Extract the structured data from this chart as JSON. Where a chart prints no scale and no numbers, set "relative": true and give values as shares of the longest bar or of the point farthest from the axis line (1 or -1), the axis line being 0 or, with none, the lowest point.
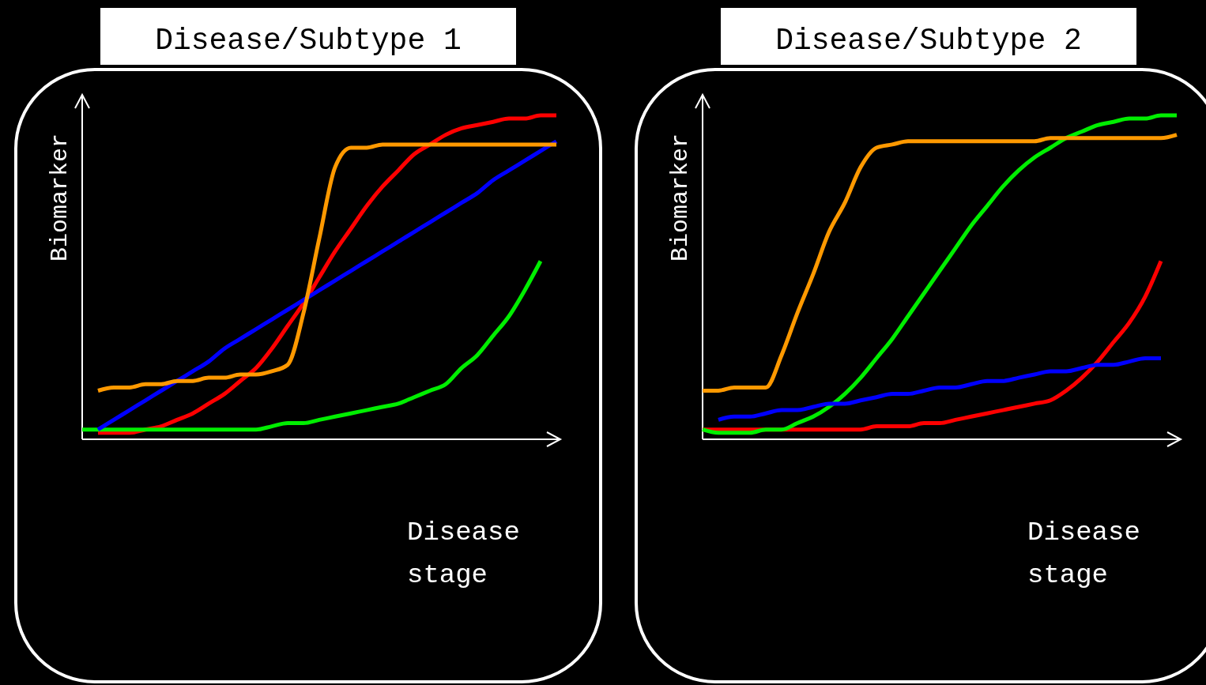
{
  "chart_data": [
    {
      "type": "line",
      "title": "Disease/Subtype 1",
      "xlabel": "Disease stage",
      "ylabel": "Biomarker",
      "relative": true,
      "categories": [
        null,
        null,
        null,
        null,
        null,
        null,
        null,
        null,
        null,
        null,
        null,
        null,
        null,
        null,
        null,
        null,
        null,
        null,
        null,
        null,
        null,
        null,
        null,
        null,
        null,
        null,
        null,
        null,
        null,
        null,
        null
      ],
      "series": [
        {
          "color": "#ff0000",
          "values": [
            null,
            0.02,
            0.02,
            0.02,
            0.03,
            0.04,
            0.06,
            0.08,
            0.11,
            0.14,
            0.18,
            0.22,
            0.28,
            0.35,
            0.42,
            0.5,
            0.58,
            0.65,
            0.72,
            0.78,
            0.83,
            0.88,
            0.91,
            0.94,
            0.96,
            0.97,
            0.98,
            0.99,
            0.99,
            1.0,
            1.0
          ]
        },
        {
          "color": "#00ee00",
          "values": [
            0.03,
            0.03,
            0.03,
            0.03,
            0.03,
            0.03,
            0.03,
            0.03,
            0.03,
            0.03,
            0.03,
            0.03,
            0.04,
            0.05,
            0.05,
            0.06,
            0.07,
            0.08,
            0.09,
            0.1,
            0.11,
            0.13,
            0.15,
            0.17,
            0.22,
            0.26,
            0.32,
            0.38,
            0.46,
            0.55,
            null
          ]
        },
        {
          "color": "#0000ff",
          "values": [
            null,
            0.03,
            0.06,
            0.09,
            0.12,
            0.15,
            0.18,
            0.21,
            0.24,
            0.28,
            0.31,
            0.34,
            0.37,
            0.4,
            0.43,
            0.46,
            0.49,
            0.52,
            0.55,
            0.58,
            0.61,
            0.64,
            0.67,
            0.7,
            0.73,
            0.76,
            0.8,
            0.83,
            0.86,
            0.89,
            0.92
          ]
        },
        {
          "color": "#ff9900",
          "values": [
            null,
            0.15,
            0.16,
            0.16,
            0.17,
            0.17,
            0.18,
            0.18,
            0.19,
            0.19,
            0.2,
            0.2,
            0.21,
            0.23,
            0.39,
            0.62,
            0.84,
            0.9,
            0.9,
            0.91,
            0.91,
            0.91,
            0.91,
            0.91,
            0.91,
            0.91,
            0.91,
            0.91,
            0.91,
            0.91,
            0.91
          ]
        }
      ]
    },
    {
      "type": "line",
      "title": "Disease/Subtype 2",
      "xlabel": "Disease stage",
      "ylabel": "Biomarker",
      "relative": true,
      "categories": [
        null,
        null,
        null,
        null,
        null,
        null,
        null,
        null,
        null,
        null,
        null,
        null,
        null,
        null,
        null,
        null,
        null,
        null,
        null,
        null,
        null,
        null,
        null,
        null,
        null,
        null,
        null,
        null,
        null,
        null,
        null
      ],
      "series": [
        {
          "color": "#ff0000",
          "values": [
            0.03,
            0.03,
            0.03,
            0.03,
            0.03,
            0.03,
            0.03,
            0.03,
            0.03,
            0.03,
            0.03,
            0.04,
            0.04,
            0.04,
            0.05,
            0.05,
            0.06,
            0.07,
            0.08,
            0.09,
            0.1,
            0.11,
            0.12,
            0.15,
            0.19,
            0.24,
            0.3,
            0.36,
            0.44,
            0.55,
            null
          ]
        },
        {
          "color": "#00ee00",
          "values": [
            0.03,
            0.02,
            0.02,
            0.02,
            0.03,
            0.03,
            0.05,
            0.07,
            0.1,
            0.14,
            0.19,
            0.25,
            0.31,
            0.38,
            0.45,
            0.52,
            0.59,
            0.66,
            0.72,
            0.78,
            0.83,
            0.87,
            0.9,
            0.93,
            0.95,
            0.97,
            0.98,
            0.99,
            0.99,
            1.0,
            1.0
          ]
        },
        {
          "color": "#0000ff",
          "values": [
            null,
            0.06,
            0.07,
            0.07,
            0.08,
            0.09,
            0.09,
            0.1,
            0.11,
            0.11,
            0.12,
            0.13,
            0.14,
            0.14,
            0.15,
            0.16,
            0.16,
            0.17,
            0.18,
            0.18,
            0.19,
            0.2,
            0.21,
            0.21,
            0.22,
            0.23,
            0.23,
            0.24,
            0.25,
            0.25,
            null
          ]
        },
        {
          "color": "#ff9900",
          "values": [
            0.15,
            0.15,
            0.16,
            0.16,
            0.16,
            0.26,
            0.39,
            0.51,
            0.64,
            0.73,
            0.84,
            0.9,
            0.91,
            0.92,
            0.92,
            0.92,
            0.92,
            0.92,
            0.92,
            0.92,
            0.92,
            0.92,
            0.93,
            0.93,
            0.93,
            0.93,
            0.93,
            0.93,
            0.93,
            0.93,
            0.94
          ]
        }
      ]
    }
  ]
}
